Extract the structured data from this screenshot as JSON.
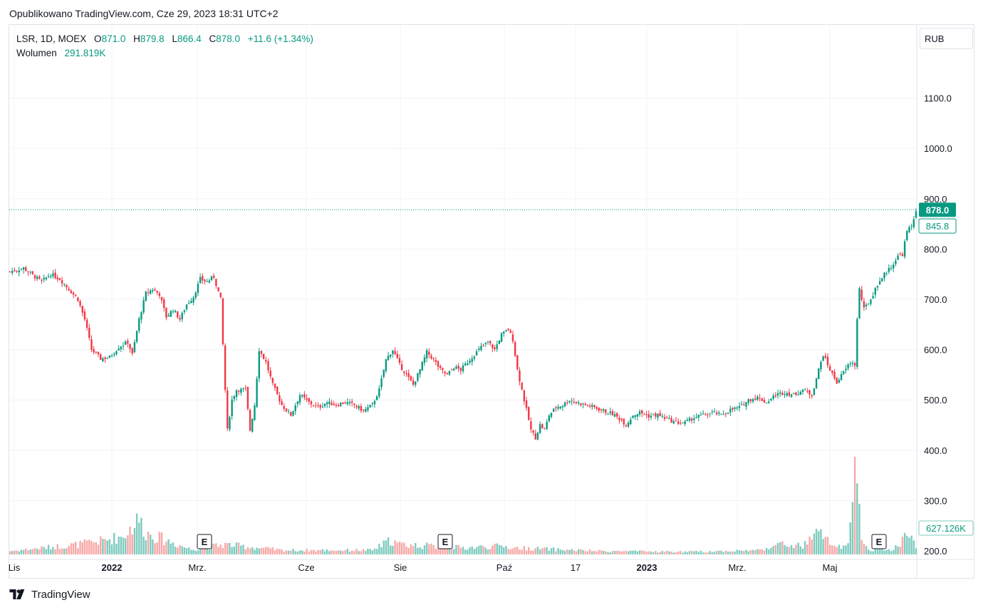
{
  "header": {
    "published": "Opublikowano TradingView.com, Cze 29, 2023 18:31 UTC+2"
  },
  "legend": {
    "symbol": "LSR, 1D, MOEX",
    "open_key": "O",
    "open": "871.0",
    "high_key": "H",
    "high": "879.8",
    "low_key": "L",
    "low": "866.4",
    "close_key": "C",
    "close": "878.0",
    "change": "+11.6 (+1.34%)",
    "volume_key": "Wolumen",
    "volume": "291.819K"
  },
  "currency_label": "RUB",
  "footer": {
    "brand": "TradingView"
  },
  "colors": {
    "up": "#089981",
    "down": "#f23645",
    "grid": "#f0f3fa",
    "text": "#131722",
    "vol_up": "#7ecbbf",
    "vol_down": "#f7a9a7"
  },
  "chart_data": {
    "type": "candlestick",
    "symbol": "LSR",
    "y_axis": {
      "min": 200,
      "max": 1200,
      "ticks": [
        200,
        300,
        400,
        500,
        600,
        700,
        800,
        900,
        1000,
        1100
      ],
      "tick_labels": [
        "200.0",
        "300.0",
        "400.0",
        "500.0",
        "600.0",
        "700.0",
        "800.0",
        "900.0",
        "1000.0",
        "1100.0"
      ]
    },
    "x_axis": {
      "labels": [
        "Lis",
        "2022",
        "Mrz.",
        "Cze",
        "Sie",
        "Paź",
        "17",
        "2023",
        "Mrz.",
        "Maj"
      ],
      "bold": [
        "2022",
        "2023"
      ]
    },
    "last_price": 878.0,
    "last_price_label": "878.0",
    "secondary_price": 845.8,
    "secondary_price_label": "845.8",
    "volume_label": "627.126K",
    "earnings_markers": [
      "E",
      "E",
      "E"
    ],
    "close_path": [
      [
        0,
        755
      ],
      [
        6,
        762
      ],
      [
        10,
        748
      ],
      [
        14,
        735
      ],
      [
        18,
        750
      ],
      [
        22,
        740
      ],
      [
        26,
        720
      ],
      [
        30,
        700
      ],
      [
        33,
        660
      ],
      [
        36,
        600
      ],
      [
        40,
        582
      ],
      [
        44,
        585
      ],
      [
        48,
        605
      ],
      [
        52,
        615
      ],
      [
        54,
        590
      ],
      [
        57,
        660
      ],
      [
        60,
        712
      ],
      [
        63,
        720
      ],
      [
        66,
        710
      ],
      [
        69,
        665
      ],
      [
        72,
        680
      ],
      [
        75,
        660
      ],
      [
        78,
        690
      ],
      [
        81,
        705
      ],
      [
        84,
        740
      ],
      [
        87,
        735
      ],
      [
        90,
        745
      ],
      [
        93,
        700
      ],
      [
        95,
        520
      ],
      [
        96,
        440
      ],
      [
        98,
        500
      ],
      [
        100,
        520
      ],
      [
        102,
        520
      ],
      [
        104,
        520
      ],
      [
        106,
        440
      ],
      [
        108,
        490
      ],
      [
        110,
        600
      ],
      [
        113,
        575
      ],
      [
        116,
        530
      ],
      [
        120,
        490
      ],
      [
        124,
        470
      ],
      [
        128,
        510
      ],
      [
        132,
        495
      ],
      [
        136,
        485
      ],
      [
        140,
        495
      ],
      [
        144,
        490
      ],
      [
        148,
        495
      ],
      [
        152,
        490
      ],
      [
        156,
        478
      ],
      [
        160,
        490
      ],
      [
        163,
        520
      ],
      [
        166,
        580
      ],
      [
        169,
        600
      ],
      [
        172,
        570
      ],
      [
        175,
        550
      ],
      [
        178,
        530
      ],
      [
        181,
        560
      ],
      [
        184,
        595
      ],
      [
        187,
        580
      ],
      [
        190,
        560
      ],
      [
        193,
        550
      ],
      [
        196,
        565
      ],
      [
        199,
        560
      ],
      [
        202,
        575
      ],
      [
        205,
        590
      ],
      [
        208,
        605
      ],
      [
        211,
        615
      ],
      [
        214,
        600
      ],
      [
        217,
        630
      ],
      [
        220,
        640
      ],
      [
        222,
        620
      ],
      [
        224,
        560
      ],
      [
        226,
        520
      ],
      [
        228,
        480
      ],
      [
        230,
        440
      ],
      [
        232,
        425
      ],
      [
        234,
        450
      ],
      [
        236,
        440
      ],
      [
        238,
        470
      ],
      [
        241,
        485
      ],
      [
        244,
        490
      ],
      [
        247,
        500
      ],
      [
        250,
        495
      ],
      [
        254,
        490
      ],
      [
        258,
        485
      ],
      [
        262,
        478
      ],
      [
        266,
        472
      ],
      [
        270,
        460
      ],
      [
        272,
        450
      ],
      [
        275,
        470
      ],
      [
        278,
        475
      ],
      [
        282,
        468
      ],
      [
        286,
        470
      ],
      [
        290,
        462
      ],
      [
        294,
        455
      ],
      [
        298,
        455
      ],
      [
        302,
        465
      ],
      [
        306,
        470
      ],
      [
        310,
        475
      ],
      [
        314,
        470
      ],
      [
        318,
        480
      ],
      [
        322,
        485
      ],
      [
        326,
        500
      ],
      [
        330,
        505
      ],
      [
        334,
        495
      ],
      [
        338,
        510
      ],
      [
        342,
        515
      ],
      [
        346,
        510
      ],
      [
        350,
        520
      ],
      [
        354,
        510
      ],
      [
        357,
        560
      ],
      [
        359,
        590
      ],
      [
        362,
        560
      ],
      [
        365,
        535
      ],
      [
        368,
        555
      ],
      [
        371,
        575
      ],
      [
        373,
        570
      ],
      [
        374,
        660
      ],
      [
        375,
        720
      ],
      [
        377,
        680
      ],
      [
        380,
        700
      ],
      [
        383,
        730
      ],
      [
        386,
        750
      ],
      [
        389,
        765
      ],
      [
        392,
        785
      ],
      [
        394,
        790
      ],
      [
        396,
        835
      ],
      [
        398,
        845
      ],
      [
        400,
        878
      ]
    ],
    "volume_profile_k": [
      [
        0,
        20
      ],
      [
        30,
        60
      ],
      [
        40,
        80
      ],
      [
        50,
        110
      ],
      [
        57,
        210
      ],
      [
        60,
        130
      ],
      [
        80,
        30
      ],
      [
        95,
        60
      ],
      [
        120,
        25
      ],
      [
        160,
        25
      ],
      [
        168,
        85
      ],
      [
        172,
        60
      ],
      [
        200,
        40
      ],
      [
        218,
        50
      ],
      [
        222,
        40
      ],
      [
        260,
        20
      ],
      [
        300,
        15
      ],
      [
        330,
        25
      ],
      [
        340,
        60
      ],
      [
        350,
        50
      ],
      [
        357,
        130
      ],
      [
        360,
        100
      ],
      [
        365,
        40
      ],
      [
        370,
        50
      ],
      [
        374,
        620
      ],
      [
        376,
        70
      ],
      [
        380,
        30
      ],
      [
        390,
        30
      ],
      [
        396,
        120
      ],
      [
        400,
        60
      ]
    ]
  }
}
